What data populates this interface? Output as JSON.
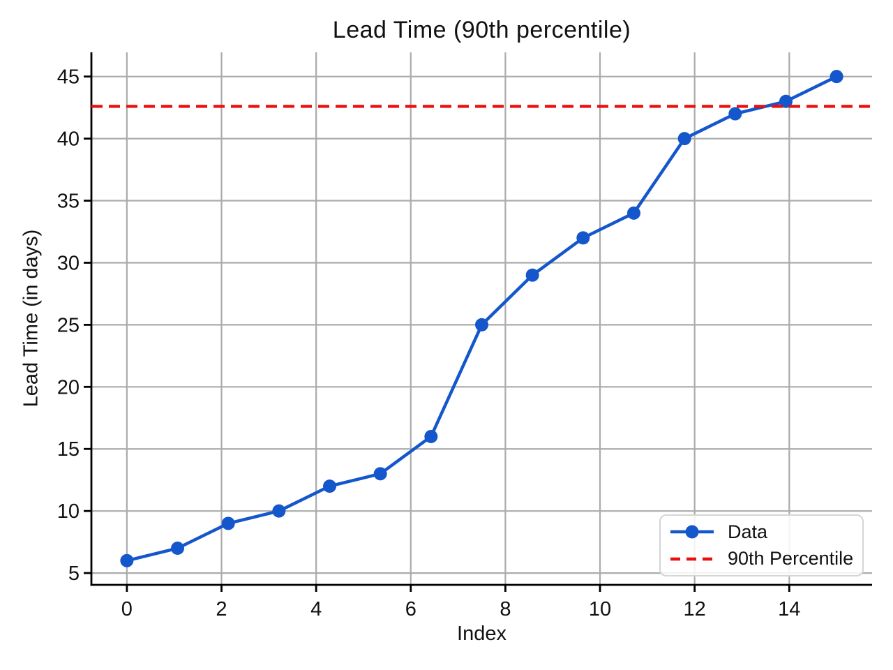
{
  "chart_data": {
    "type": "line",
    "title": "Lead Time (90th percentile)",
    "xlabel": "Index",
    "ylabel": "Lead Time (in days)",
    "x": [
      0,
      1.0714,
      2.1429,
      3.2143,
      4.2857,
      5.3571,
      6.4286,
      7.5,
      8.5714,
      9.6429,
      10.7143,
      11.7857,
      12.8571,
      13.9286,
      15
    ],
    "series": [
      {
        "name": "Data",
        "values": [
          6,
          7,
          9,
          10,
          12,
          13,
          16,
          25,
          29,
          32,
          34,
          40,
          42,
          43,
          45
        ],
        "color": "#1456cb",
        "marker": "circle",
        "line_style": "solid"
      }
    ],
    "reference_lines": [
      {
        "name": "90th Percentile",
        "value": 42.6,
        "color": "#ed0d0d",
        "line_style": "dashed"
      }
    ],
    "xticks": [
      0,
      2,
      4,
      6,
      8,
      10,
      12,
      14
    ],
    "yticks": [
      5,
      10,
      15,
      20,
      25,
      30,
      35,
      40,
      45
    ],
    "xlim": [
      -0.75,
      15.75
    ],
    "ylim": [
      4.05,
      46.95
    ],
    "grid": true,
    "legend_position": "lower right",
    "colors": {
      "grid": "#ababab",
      "spine": "#000000",
      "text": "#111111",
      "legend_border": "#d5d5d5"
    }
  }
}
